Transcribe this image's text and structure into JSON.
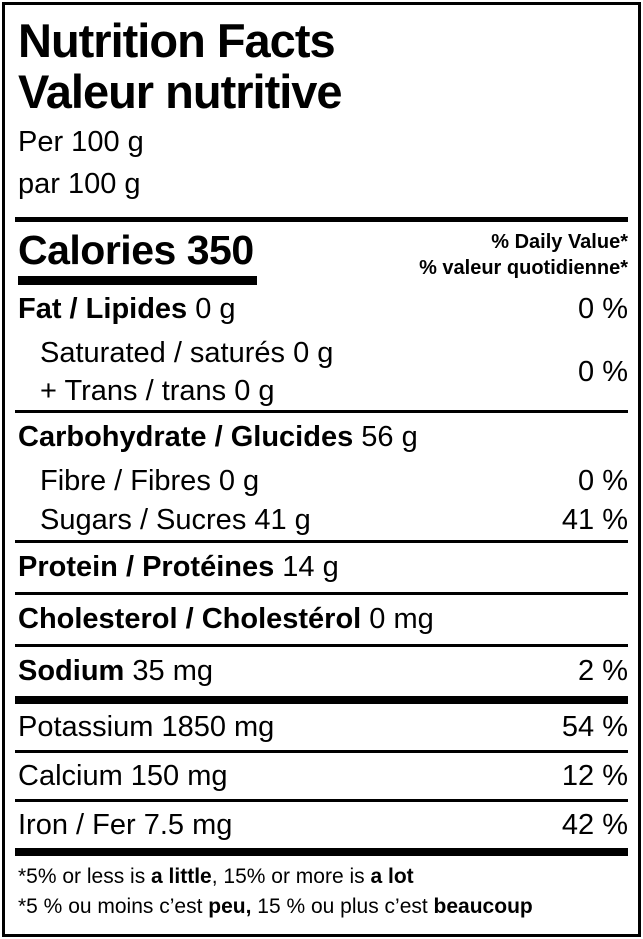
{
  "colors": {
    "text": "#000000",
    "background": "#ffffff",
    "border": "#000000"
  },
  "header": {
    "title_en": "Nutrition Facts",
    "title_fr": "Valeur nutritive",
    "serving_en": "Per 100 g",
    "serving_fr": "par 100 g"
  },
  "calories": {
    "label": "Calories",
    "value": "350",
    "dv_header_en": "% Daily Value*",
    "dv_header_fr": "% valeur quotidienne*"
  },
  "rows": [
    {
      "id": "fat",
      "sep": "none",
      "indent": false,
      "parts": [
        {
          "t": "Fat / Lipides",
          "b": true
        },
        {
          "t": " 0 g",
          "b": false
        }
      ],
      "dv": "0 %"
    },
    {
      "id": "saturated-trans",
      "sep": "none",
      "indent": true,
      "group": true,
      "lines": [
        "Saturated / saturés 0 g",
        "+ Trans / trans 0 g"
      ],
      "dv": "0 %"
    },
    {
      "id": "carbohydrate",
      "sep": "thin",
      "indent": false,
      "parts": [
        {
          "t": "Carbohydrate / Glucides",
          "b": true
        },
        {
          "t": " 56 g",
          "b": false
        }
      ],
      "dv": ""
    },
    {
      "id": "fibre",
      "sep": "none",
      "indent": true,
      "parts": [
        {
          "t": "Fibre / Fibres 0 g",
          "b": false
        }
      ],
      "dv": "0 %"
    },
    {
      "id": "sugars",
      "sep": "none",
      "indent": true,
      "parts": [
        {
          "t": "Sugars / Sucres 41 g",
          "b": false
        }
      ],
      "dv": "41 %"
    },
    {
      "id": "protein",
      "sep": "thin",
      "indent": false,
      "parts": [
        {
          "t": "Protein / Protéines",
          "b": true
        },
        {
          "t": " 14 g",
          "b": false
        }
      ],
      "dv": ""
    },
    {
      "id": "cholesterol",
      "sep": "thin",
      "indent": false,
      "parts": [
        {
          "t": "Cholesterol / Cholestérol",
          "b": true
        },
        {
          "t": " 0 mg",
          "b": false
        }
      ],
      "dv": ""
    },
    {
      "id": "sodium",
      "sep": "thin",
      "indent": false,
      "parts": [
        {
          "t": "Sodium",
          "b": true
        },
        {
          "t": " 35 mg",
          "b": false
        }
      ],
      "dv": "2 %"
    },
    {
      "id": "potassium",
      "sep": "thick",
      "indent": false,
      "parts": [
        {
          "t": "Potassium 1850 mg",
          "b": false
        }
      ],
      "dv": "54 %"
    },
    {
      "id": "calcium",
      "sep": "thin",
      "indent": false,
      "parts": [
        {
          "t": "Calcium 150 mg",
          "b": false
        }
      ],
      "dv": "12 %"
    },
    {
      "id": "iron",
      "sep": "thin",
      "indent": false,
      "parts": [
        {
          "t": "Iron / Fer 7.5 mg",
          "b": false
        }
      ],
      "dv": "42 %"
    }
  ],
  "footnotes": [
    {
      "id": "en",
      "parts": [
        {
          "t": "*5% or less is ",
          "b": false
        },
        {
          "t": "a little",
          "b": true
        },
        {
          "t": ", 15% or more is ",
          "b": false
        },
        {
          "t": "a lot",
          "b": true
        }
      ]
    },
    {
      "id": "fr",
      "parts": [
        {
          "t": "*5 % ou moins c’est ",
          "b": false
        },
        {
          "t": "peu,",
          "b": true
        },
        {
          "t": " 15 % ou plus c’est ",
          "b": false
        },
        {
          "t": "beaucoup",
          "b": true
        }
      ]
    }
  ]
}
